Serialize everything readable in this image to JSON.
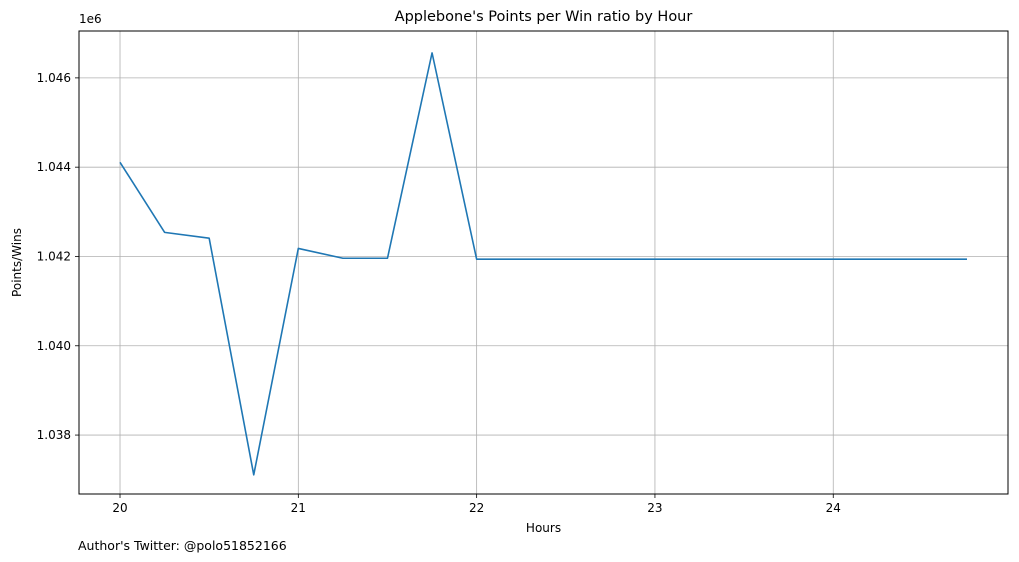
{
  "chart_data": {
    "type": "line",
    "title": "Applebone's Points per Win ratio by Hour",
    "xlabel": "Hours",
    "ylabel": "Points/Wins",
    "y_offset_label": "1e6",
    "xlim": [
      19.77,
      24.98
    ],
    "ylim": [
      1.03668,
      1.04705
    ],
    "x_ticks": [
      20,
      21,
      22,
      23,
      24
    ],
    "x_tick_labels": [
      "20",
      "21",
      "22",
      "23",
      "24"
    ],
    "y_ticks": [
      1.038,
      1.04,
      1.042,
      1.044,
      1.046
    ],
    "y_tick_labels": [
      "1.038",
      "1.040",
      "1.042",
      "1.044",
      "1.046"
    ],
    "grid": true,
    "series": [
      {
        "color": "#1f77b4",
        "x": [
          20.0,
          20.25,
          20.5,
          20.75,
          21.0,
          21.25,
          21.5,
          21.75,
          22.0,
          22.25,
          22.5,
          22.75,
          23.0,
          23.25,
          23.5,
          23.75,
          24.0,
          24.25,
          24.5,
          24.75
        ],
        "y": [
          1.04411,
          1.04254,
          1.04241,
          1.03711,
          1.04218,
          1.04196,
          1.04196,
          1.04656,
          1.04194,
          1.04194,
          1.04194,
          1.04194,
          1.04194,
          1.04194,
          1.04194,
          1.04194,
          1.04194,
          1.04194,
          1.04194,
          1.04194
        ]
      }
    ]
  },
  "footnote": "Author's Twitter: @polo51852166"
}
